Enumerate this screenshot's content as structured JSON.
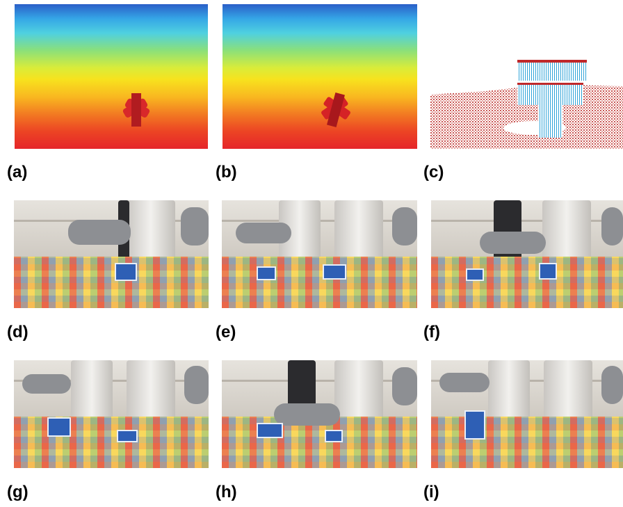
{
  "figure": {
    "labels": {
      "a": "(a)",
      "b": "(b)",
      "c": "(c)",
      "d": "(d)",
      "e": "(e)",
      "f": "(f)",
      "g": "(g)",
      "h": "(h)",
      "i": "(i)"
    }
  }
}
